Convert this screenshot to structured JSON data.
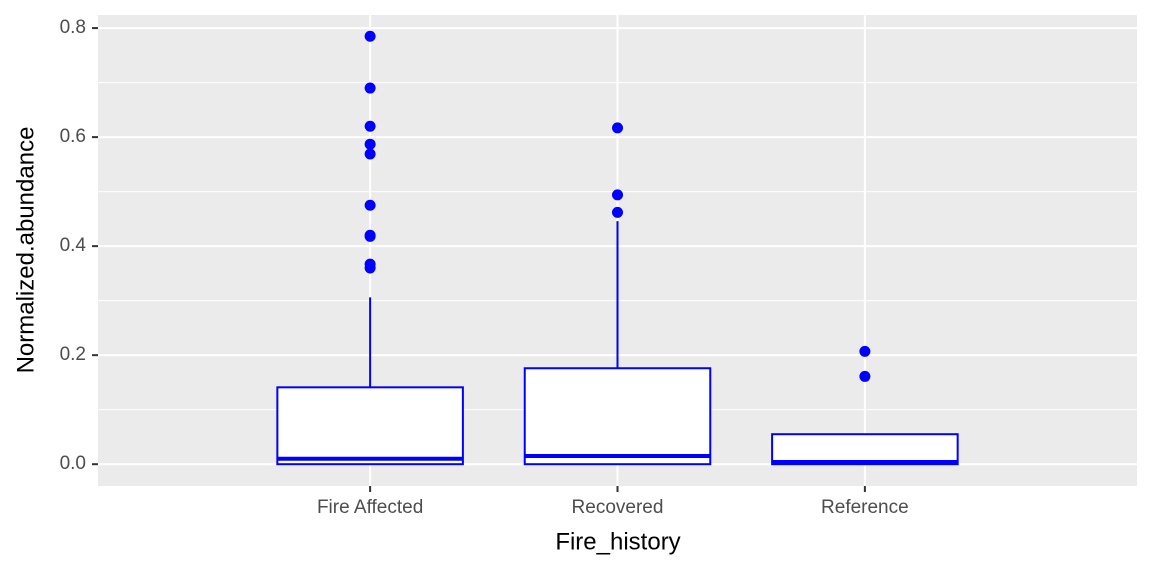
{
  "chart_data": {
    "type": "boxplot",
    "x_label": "Fire_history",
    "y_label": "Normalized.abundance",
    "categories": [
      "Fire Affected",
      "Recovered",
      "Reference"
    ],
    "color": "#0000ff",
    "boxes": [
      {
        "min": 0,
        "q1": 0,
        "median": 0.01,
        "q3": 0.141,
        "max": 0.306,
        "outliers": [
          0.785,
          0.69,
          0.62,
          0.587,
          0.569,
          0.475,
          0.42,
          0.418,
          0.367,
          0.36
        ]
      },
      {
        "min": 0,
        "q1": 0,
        "median": 0.015,
        "q3": 0.176,
        "max": 0.446,
        "outliers": [
          0.617,
          0.494,
          0.462
        ]
      },
      {
        "min": 0,
        "q1": 0,
        "median": 0.004,
        "q3": 0.055,
        "max": 0.055,
        "outliers": [
          0.207,
          0.161
        ]
      }
    ],
    "ylim": [
      -0.04,
      0.824
    ],
    "yticks": [
      {
        "value": 0,
        "label": "0.0"
      },
      0.2,
      0.4,
      0.6,
      0.8
    ],
    "minor_yticks": [
      0.1,
      0.3,
      0.5,
      0.7
    ],
    "grid": true
  }
}
